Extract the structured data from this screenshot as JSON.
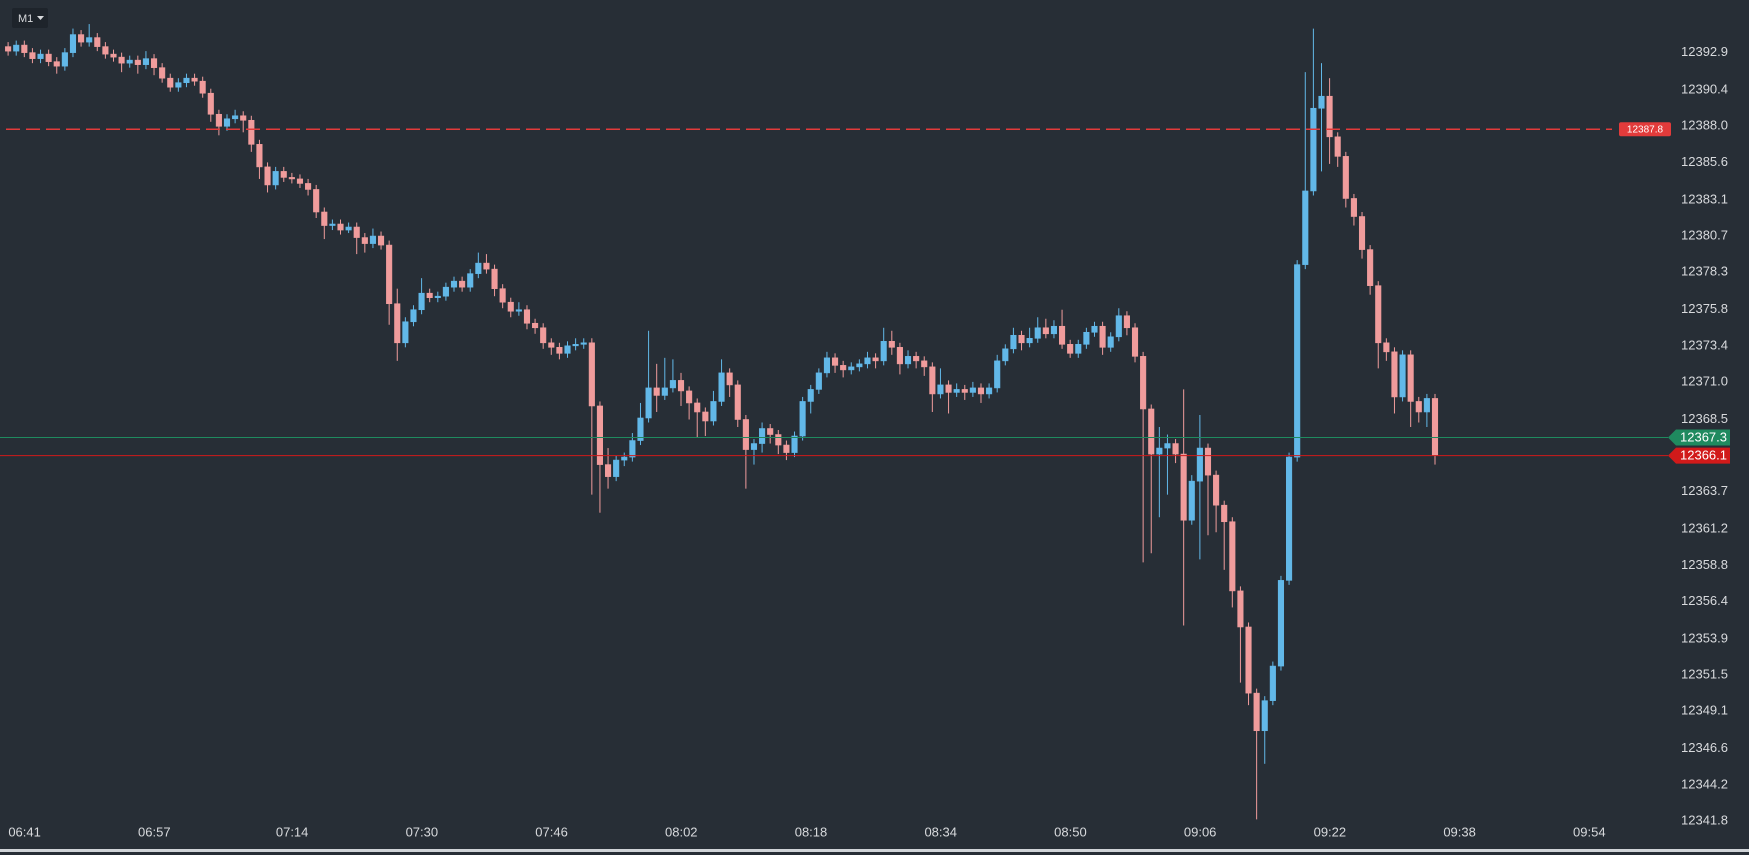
{
  "toolbar": {
    "timeframe": "M1"
  },
  "chart_data": {
    "type": "candlestick",
    "up_color": "#62b8e8",
    "down_color": "#f09c9c",
    "x": [
      "06:39",
      "06:40",
      "06:41",
      "06:42",
      "06:43",
      "06:44",
      "06:45",
      "06:46",
      "06:47",
      "06:48",
      "06:49",
      "06:50",
      "06:51",
      "06:52",
      "06:53",
      "06:54",
      "06:55",
      "06:56",
      "06:57",
      "06:58",
      "06:59",
      "07:00",
      "07:01",
      "07:02",
      "07:03",
      "07:04",
      "07:05",
      "07:06",
      "07:07",
      "07:08",
      "07:09",
      "07:10",
      "07:11",
      "07:12",
      "07:13",
      "07:14",
      "07:15",
      "07:16",
      "07:17",
      "07:18",
      "07:19",
      "07:20",
      "07:21",
      "07:22",
      "07:23",
      "07:24",
      "07:25",
      "07:26",
      "07:27",
      "07:28",
      "07:29",
      "07:30",
      "07:31",
      "07:32",
      "07:33",
      "07:34",
      "07:35",
      "07:36",
      "07:37",
      "07:38",
      "07:39",
      "07:40",
      "07:41",
      "07:42",
      "07:43",
      "07:44",
      "07:45",
      "07:46",
      "07:47",
      "07:48",
      "07:49",
      "07:50",
      "07:51",
      "07:52",
      "07:53",
      "07:54",
      "07:55",
      "07:56",
      "07:57",
      "07:58",
      "07:59",
      "08:00",
      "08:01",
      "08:02",
      "08:03",
      "08:04",
      "08:05",
      "08:06",
      "08:07",
      "08:08",
      "08:09",
      "08:10",
      "08:11",
      "08:12",
      "08:13",
      "08:14",
      "08:15",
      "08:16",
      "08:17",
      "08:18",
      "08:19",
      "08:20",
      "08:21",
      "08:22",
      "08:23",
      "08:24",
      "08:25",
      "08:26",
      "08:27",
      "08:28",
      "08:29",
      "08:30",
      "08:31",
      "08:32",
      "08:33",
      "08:34",
      "08:35",
      "08:36",
      "08:37",
      "08:38",
      "08:39",
      "08:40",
      "08:41",
      "08:42",
      "08:43",
      "08:44",
      "08:45",
      "08:46",
      "08:47",
      "08:48",
      "08:49",
      "08:50",
      "08:51",
      "08:52",
      "08:53",
      "08:54",
      "08:55",
      "08:56",
      "08:57",
      "08:58",
      "08:59",
      "09:00",
      "09:01",
      "09:02",
      "09:03",
      "09:04",
      "09:05",
      "09:06",
      "09:07",
      "09:08",
      "09:09",
      "09:10",
      "09:11",
      "09:12",
      "09:13",
      "09:14",
      "09:15",
      "09:16",
      "09:17",
      "09:18",
      "09:19",
      "09:20",
      "09:21",
      "09:22",
      "09:23",
      "09:24",
      "09:25",
      "09:26",
      "09:27",
      "09:28",
      "09:29",
      "09:30",
      "09:31",
      "09:32",
      "09:33",
      "09:34",
      "09:35"
    ],
    "ohlc": [
      [
        12393.3,
        12393.6,
        12392.7,
        12393.0
      ],
      [
        12393.0,
        12393.7,
        12392.7,
        12393.4
      ],
      [
        12393.4,
        12393.7,
        12392.6,
        12392.9
      ],
      [
        12392.9,
        12393.2,
        12392.2,
        12392.5
      ],
      [
        12392.5,
        12393.1,
        12392.2,
        12392.8
      ],
      [
        12392.8,
        12393.1,
        12392.0,
        12392.3
      ],
      [
        12392.3,
        12392.6,
        12391.5,
        12392.0
      ],
      [
        12392.0,
        12393.2,
        12391.7,
        12392.9
      ],
      [
        12392.9,
        12394.5,
        12392.6,
        12394.1
      ],
      [
        12394.1,
        12394.4,
        12393.3,
        12393.6
      ],
      [
        12393.6,
        12394.8,
        12393.3,
        12393.9
      ],
      [
        12393.9,
        12394.2,
        12393.0,
        12393.3
      ],
      [
        12393.3,
        12393.6,
        12392.5,
        12392.8
      ],
      [
        12392.8,
        12393.1,
        12392.3,
        12392.6
      ],
      [
        12392.6,
        12392.9,
        12391.6,
        12392.2
      ],
      [
        12392.2,
        12392.7,
        12391.9,
        12392.4
      ],
      [
        12392.4,
        12392.7,
        12391.5,
        12392.1
      ],
      [
        12392.1,
        12393.0,
        12391.8,
        12392.5
      ],
      [
        12392.5,
        12392.8,
        12391.4,
        12391.9
      ],
      [
        12391.9,
        12392.2,
        12390.9,
        12391.2
      ],
      [
        12391.2,
        12391.5,
        12390.3,
        12390.6
      ],
      [
        12390.6,
        12391.2,
        12390.3,
        12390.9
      ],
      [
        12390.9,
        12391.5,
        12390.6,
        12391.2
      ],
      [
        12391.2,
        12391.5,
        12390.7,
        12391.0
      ],
      [
        12391.0,
        12391.3,
        12389.9,
        12390.2
      ],
      [
        12390.2,
        12390.5,
        12388.3,
        12388.8
      ],
      [
        12388.8,
        12389.1,
        12387.4,
        12388.0
      ],
      [
        12388.0,
        12388.8,
        12387.7,
        12388.5
      ],
      [
        12388.5,
        12389.1,
        12388.2,
        12388.7
      ],
      [
        12388.7,
        12389.0,
        12387.6,
        12388.4
      ],
      [
        12388.4,
        12388.7,
        12386.3,
        12386.8
      ],
      [
        12386.8,
        12387.1,
        12384.5,
        12385.3
      ],
      [
        12385.3,
        12385.6,
        12383.6,
        12384.1
      ],
      [
        12384.1,
        12385.3,
        12383.8,
        12385.0
      ],
      [
        12385.0,
        12385.3,
        12384.3,
        12384.6
      ],
      [
        12384.6,
        12384.9,
        12384.2,
        12384.5
      ],
      [
        12384.5,
        12384.8,
        12383.9,
        12384.2
      ],
      [
        12384.2,
        12384.5,
        12383.4,
        12383.8
      ],
      [
        12383.8,
        12384.1,
        12381.9,
        12382.3
      ],
      [
        12382.3,
        12382.6,
        12380.5,
        12381.4
      ],
      [
        12381.4,
        12381.8,
        12381.1,
        12381.5
      ],
      [
        12381.5,
        12381.8,
        12380.8,
        12381.1
      ],
      [
        12381.1,
        12381.6,
        12380.9,
        12381.3
      ],
      [
        12381.3,
        12381.6,
        12379.5,
        12380.6
      ],
      [
        12380.6,
        12380.9,
        12379.6,
        12380.2
      ],
      [
        12380.2,
        12381.2,
        12379.9,
        12380.7
      ],
      [
        12380.7,
        12381.0,
        12379.8,
        12380.1
      ],
      [
        12380.1,
        12380.4,
        12374.8,
        12376.2
      ],
      [
        12376.2,
        12377.2,
        12372.4,
        12373.6
      ],
      [
        12373.6,
        12375.3,
        12373.3,
        12375.0
      ],
      [
        12375.0,
        12376.1,
        12374.7,
        12375.8
      ],
      [
        12375.8,
        12377.9,
        12375.5,
        12376.9
      ],
      [
        12376.9,
        12377.2,
        12376.3,
        12376.6
      ],
      [
        12376.6,
        12377.0,
        12376.3,
        12376.7
      ],
      [
        12376.7,
        12377.6,
        12376.4,
        12377.3
      ],
      [
        12377.3,
        12378.0,
        12377.0,
        12377.7
      ],
      [
        12377.7,
        12378.0,
        12377.0,
        12377.3
      ],
      [
        12377.3,
        12378.5,
        12377.0,
        12378.2
      ],
      [
        12378.2,
        12379.6,
        12377.9,
        12378.9
      ],
      [
        12378.9,
        12379.5,
        12378.2,
        12378.5
      ],
      [
        12378.5,
        12378.8,
        12376.7,
        12377.2
      ],
      [
        12377.2,
        12377.5,
        12375.9,
        12376.3
      ],
      [
        12376.3,
        12376.6,
        12375.3,
        12375.7
      ],
      [
        12375.7,
        12376.3,
        12375.4,
        12375.8
      ],
      [
        12375.8,
        12376.1,
        12374.5,
        12374.9
      ],
      [
        12374.9,
        12375.2,
        12374.2,
        12374.6
      ],
      [
        12374.6,
        12374.9,
        12373.2,
        12373.6
      ],
      [
        12373.6,
        12373.9,
        12372.8,
        12373.3
      ],
      [
        12373.3,
        12373.6,
        12372.5,
        12372.9
      ],
      [
        12372.9,
        12373.7,
        12372.6,
        12373.4
      ],
      [
        12373.4,
        12373.9,
        12373.1,
        12373.5
      ],
      [
        12373.5,
        12373.9,
        12373.2,
        12373.6
      ],
      [
        12373.6,
        12373.9,
        12363.5,
        12369.4
      ],
      [
        12369.4,
        12369.7,
        12362.3,
        12365.5
      ],
      [
        12365.5,
        12366.6,
        12363.9,
        12364.7
      ],
      [
        12364.7,
        12366.1,
        12364.4,
        12365.8
      ],
      [
        12365.8,
        12366.3,
        12365.4,
        12366.0
      ],
      [
        12366.0,
        12367.6,
        12365.7,
        12367.1
      ],
      [
        12367.1,
        12369.6,
        12366.8,
        12368.6
      ],
      [
        12368.6,
        12374.4,
        12368.3,
        12370.6
      ],
      [
        12370.6,
        12372.2,
        12369.0,
        12370.1
      ],
      [
        12370.1,
        12372.6,
        12369.8,
        12370.6
      ],
      [
        12370.6,
        12372.5,
        12370.3,
        12371.1
      ],
      [
        12371.1,
        12371.6,
        12369.4,
        12370.4
      ],
      [
        12370.4,
        12370.7,
        12368.5,
        12369.6
      ],
      [
        12369.6,
        12369.9,
        12367.3,
        12369.0
      ],
      [
        12369.0,
        12369.3,
        12367.4,
        12368.4
      ],
      [
        12368.4,
        12370.4,
        12368.1,
        12369.7
      ],
      [
        12369.7,
        12372.5,
        12369.4,
        12371.6
      ],
      [
        12371.6,
        12371.9,
        12370.0,
        12370.8
      ],
      [
        12370.8,
        12371.1,
        12368.0,
        12368.5
      ],
      [
        12368.5,
        12368.8,
        12363.9,
        12366.5
      ],
      [
        12366.5,
        12367.2,
        12365.5,
        12366.9
      ],
      [
        12366.9,
        12368.3,
        12366.3,
        12367.9
      ],
      [
        12367.9,
        12368.2,
        12366.9,
        12367.5
      ],
      [
        12367.5,
        12367.8,
        12366.2,
        12366.8
      ],
      [
        12366.8,
        12367.1,
        12365.8,
        12366.3
      ],
      [
        12366.3,
        12367.7,
        12366.0,
        12367.4
      ],
      [
        12367.4,
        12370.0,
        12367.1,
        12369.7
      ],
      [
        12369.7,
        12370.8,
        12368.9,
        12370.5
      ],
      [
        12370.5,
        12371.9,
        12370.2,
        12371.6
      ],
      [
        12371.6,
        12373.0,
        12371.3,
        12372.6
      ],
      [
        12372.6,
        12372.9,
        12371.6,
        12372.1
      ],
      [
        12372.1,
        12372.4,
        12371.3,
        12371.8
      ],
      [
        12371.8,
        12372.3,
        12371.5,
        12372.0
      ],
      [
        12372.0,
        12372.5,
        12371.7,
        12372.2
      ],
      [
        12372.2,
        12373.0,
        12371.9,
        12372.6
      ],
      [
        12372.6,
        12372.9,
        12371.9,
        12372.4
      ],
      [
        12372.4,
        12374.6,
        12372.1,
        12373.7
      ],
      [
        12373.7,
        12374.4,
        12372.8,
        12373.3
      ],
      [
        12373.3,
        12373.6,
        12371.5,
        12372.2
      ],
      [
        12372.2,
        12373.1,
        12371.9,
        12372.7
      ],
      [
        12372.7,
        12373.0,
        12371.9,
        12372.4
      ],
      [
        12372.4,
        12372.7,
        12371.4,
        12372.0
      ],
      [
        12372.0,
        12372.3,
        12369.0,
        12370.2
      ],
      [
        12370.2,
        12371.9,
        12369.9,
        12370.8
      ],
      [
        12370.8,
        12371.1,
        12368.9,
        12370.3
      ],
      [
        12370.3,
        12370.9,
        12370.0,
        12370.5
      ],
      [
        12370.5,
        12370.8,
        12369.8,
        12370.3
      ],
      [
        12370.3,
        12371.0,
        12370.0,
        12370.6
      ],
      [
        12370.6,
        12370.9,
        12369.6,
        12370.2
      ],
      [
        12370.2,
        12370.9,
        12369.9,
        12370.6
      ],
      [
        12370.6,
        12372.8,
        12370.3,
        12372.4
      ],
      [
        12372.4,
        12373.5,
        12372.1,
        12373.2
      ],
      [
        12373.2,
        12374.6,
        12372.9,
        12374.1
      ],
      [
        12374.1,
        12374.4,
        12373.1,
        12373.6
      ],
      [
        12373.6,
        12374.6,
        12373.3,
        12373.9
      ],
      [
        12373.9,
        12375.3,
        12373.6,
        12374.6
      ],
      [
        12374.6,
        12375.2,
        12373.9,
        12374.2
      ],
      [
        12374.2,
        12375.1,
        12373.9,
        12374.7
      ],
      [
        12374.7,
        12375.8,
        12373.2,
        12373.5
      ],
      [
        12373.5,
        12373.8,
        12372.6,
        12372.9
      ],
      [
        12372.9,
        12373.8,
        12372.6,
        12373.5
      ],
      [
        12373.5,
        12374.6,
        12373.2,
        12374.3
      ],
      [
        12374.3,
        12375.0,
        12374.0,
        12374.7
      ],
      [
        12374.7,
        12375.0,
        12372.8,
        12373.3
      ],
      [
        12373.3,
        12374.3,
        12373.0,
        12374.0
      ],
      [
        12374.0,
        12375.9,
        12373.7,
        12375.4
      ],
      [
        12375.4,
        12375.7,
        12374.1,
        12374.6
      ],
      [
        12374.6,
        12374.9,
        12372.3,
        12372.7
      ],
      [
        12372.7,
        12373.0,
        12359.0,
        12369.2
      ],
      [
        12369.2,
        12369.5,
        12359.6,
        12366.2
      ],
      [
        12366.2,
        12368.0,
        12362.0,
        12366.6
      ],
      [
        12366.6,
        12367.5,
        12363.5,
        12366.9
      ],
      [
        12366.9,
        12367.2,
        12365.6,
        12366.2
      ],
      [
        12366.2,
        12370.5,
        12354.8,
        12361.8
      ],
      [
        12361.8,
        12364.8,
        12361.5,
        12364.4
      ],
      [
        12364.4,
        12368.8,
        12359.2,
        12366.6
      ],
      [
        12366.6,
        12366.9,
        12360.8,
        12364.8
      ],
      [
        12364.8,
        12365.1,
        12361.0,
        12362.8
      ],
      [
        12362.8,
        12363.1,
        12358.5,
        12361.7
      ],
      [
        12361.7,
        12362.0,
        12356.0,
        12357.1
      ],
      [
        12357.1,
        12357.4,
        12351.0,
        12354.7
      ],
      [
        12354.7,
        12355.0,
        12349.5,
        12350.3
      ],
      [
        12350.3,
        12350.6,
        12341.9,
        12347.8
      ],
      [
        12347.8,
        12350.1,
        12345.6,
        12349.8
      ],
      [
        12349.8,
        12352.4,
        12349.5,
        12352.1
      ],
      [
        12352.1,
        12358.1,
        12351.8,
        12357.8
      ],
      [
        12357.8,
        12366.3,
        12357.5,
        12366.0
      ],
      [
        12366.0,
        12379.1,
        12365.7,
        12378.8
      ],
      [
        12378.8,
        12391.6,
        12378.5,
        12383.7
      ],
      [
        12383.7,
        12394.5,
        12383.4,
        12389.2
      ],
      [
        12389.2,
        12392.2,
        12385.0,
        12390.0
      ],
      [
        12390.0,
        12391.2,
        12385.5,
        12387.3
      ],
      [
        12387.3,
        12387.6,
        12385.3,
        12386.0
      ],
      [
        12386.0,
        12386.3,
        12382.6,
        12383.2
      ],
      [
        12383.2,
        12383.5,
        12381.4,
        12382.0
      ],
      [
        12382.0,
        12382.3,
        12379.2,
        12379.8
      ],
      [
        12379.8,
        12380.1,
        12376.8,
        12377.4
      ],
      [
        12377.4,
        12377.7,
        12371.9,
        12373.6
      ],
      [
        12373.6,
        12373.9,
        12372.4,
        12373.0
      ],
      [
        12373.0,
        12373.3,
        12368.9,
        12370.0
      ],
      [
        12370.0,
        12373.1,
        12369.7,
        12372.8
      ],
      [
        12372.8,
        12373.1,
        12368.0,
        12369.7
      ],
      [
        12369.7,
        12370.0,
        12368.3,
        12369.0
      ],
      [
        12369.0,
        12370.2,
        12368.0,
        12369.9
      ],
      [
        12369.9,
        12370.2,
        12365.5,
        12366.1
      ]
    ],
    "xlim": [
      "06:38",
      "10:03"
    ],
    "xticks": [
      "06:41",
      "06:57",
      "07:14",
      "07:30",
      "07:46",
      "08:02",
      "08:18",
      "08:34",
      "08:50",
      "09:06",
      "09:22",
      "09:38",
      "09:54"
    ],
    "ylim": [
      12340.0,
      12396.4
    ],
    "yticks": [
      12392.9,
      12390.4,
      {
        "value": 12388,
        "label": "12388.0"
      },
      12385.6,
      12383.1,
      12380.7,
      12378.3,
      12375.8,
      12373.4,
      {
        "value": 12371,
        "label": "12371.0"
      },
      12368.5,
      12363.7,
      12361.2,
      12358.8,
      12356.4,
      12353.9,
      12351.5,
      12349.1,
      12346.6,
      12344.2,
      12341.8
    ],
    "price_lines": [
      {
        "value": 12387.8,
        "color": "#e23b3b",
        "style": "dashed"
      },
      {
        "value": 12367.3,
        "color": "#1f8a5f",
        "style": "solid"
      },
      {
        "value": 12366.1,
        "color": "#d11a1a",
        "style": "solid"
      }
    ]
  }
}
